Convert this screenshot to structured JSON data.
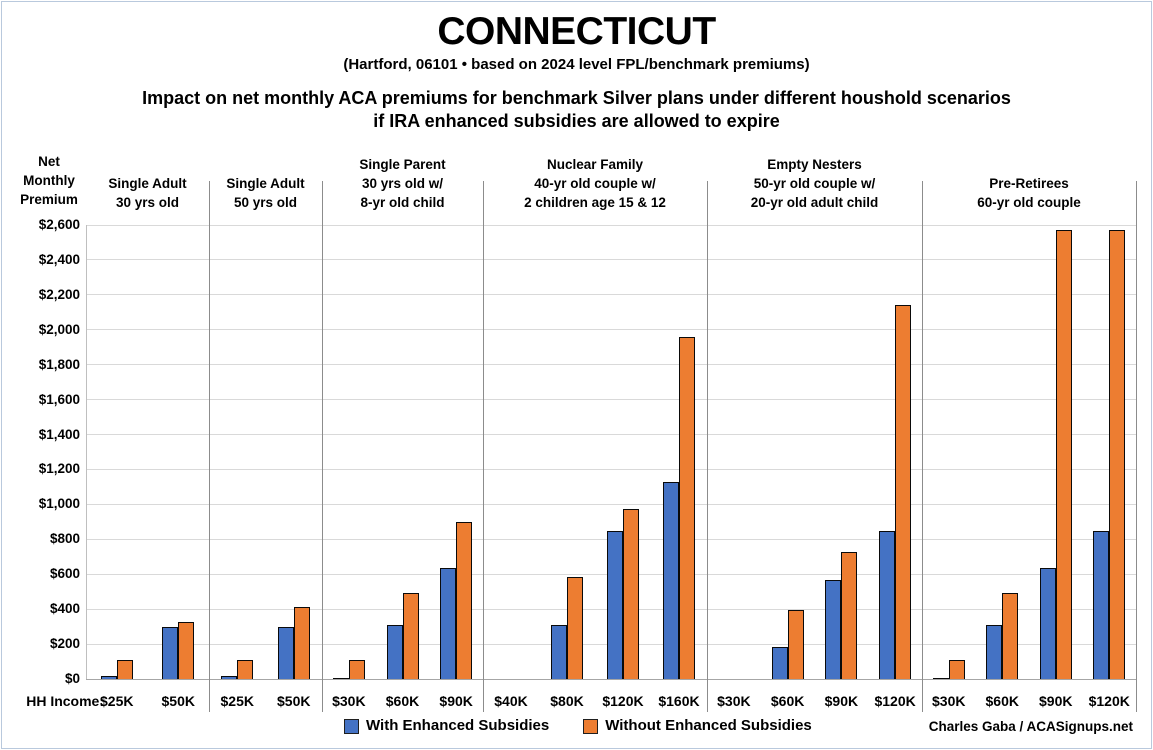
{
  "header": {
    "title": "CONNECTICUT",
    "subtitle": "(Hartford, 06101 • based on 2024 level FPL/benchmark premiums)",
    "heading_line1": "Impact on net monthly ACA premiums for benchmark Silver plans under different houshold scenarios",
    "heading_line2": "if IRA enhanced subsidies are allowed to expire"
  },
  "chart_data": {
    "type": "bar",
    "title": "Impact on net monthly ACA premiums for benchmark Silver plans under different houshold scenarios if IRA enhanced subsidies are allowed to expire",
    "ylabel": "Net Monthly Premium",
    "y_axis_title_lines": [
      "Net",
      "Monthly",
      "Premium"
    ],
    "ylim": [
      0,
      2600
    ],
    "ytick_step": 200,
    "ytick_prefix": "$",
    "grid": true,
    "legend_position": "bottom",
    "x_axis_label": "HH Income:",
    "legend": [
      {
        "name": "With Enhanced Subsidies",
        "color": "#4472C4"
      },
      {
        "name": "Without Enhanced Subsidies",
        "color": "#ED7D31"
      }
    ],
    "credit": "Charles Gaba / ACASignups.net",
    "groups": [
      {
        "title_lines": [
          "Single Adult",
          "30 yrs old"
        ],
        "categories": [
          "$25K",
          "$50K"
        ],
        "with_enhanced": [
          20,
          295
        ],
        "without_enhanced": [
          110,
          325
        ]
      },
      {
        "title_lines": [
          "Single Adult",
          "50 yrs old"
        ],
        "categories": [
          "$25K",
          "$50K"
        ],
        "with_enhanced": [
          20,
          295
        ],
        "without_enhanced": [
          110,
          410
        ]
      },
      {
        "title_lines": [
          "Single Parent",
          "30 yrs old w/",
          "8-yr old child"
        ],
        "categories": [
          "$30K",
          "$60K",
          "$90K"
        ],
        "with_enhanced": [
          8,
          310,
          635
        ],
        "without_enhanced": [
          110,
          490,
          900
        ]
      },
      {
        "title_lines": [
          "Nuclear Family",
          "40-yr old couple w/",
          "2 children age 15 & 12"
        ],
        "categories": [
          "$40K",
          "$80K",
          "$120K",
          "$160K"
        ],
        "with_enhanced": [
          0,
          310,
          845,
          1130
        ],
        "without_enhanced": [
          0,
          585,
          975,
          1960
        ]
      },
      {
        "title_lines": [
          "Empty Nesters",
          "50-yr old couple w/",
          "20-yr old adult child"
        ],
        "categories": [
          "$30K",
          "$60K",
          "$90K",
          "$120K"
        ],
        "with_enhanced": [
          0,
          185,
          565,
          845
        ],
        "without_enhanced": [
          0,
          395,
          730,
          2140
        ]
      },
      {
        "title_lines": [
          "Pre-Retirees",
          "60-yr old couple"
        ],
        "categories": [
          "$30K",
          "$60K",
          "$90K",
          "$120K"
        ],
        "with_enhanced": [
          8,
          310,
          635,
          845
        ],
        "without_enhanced": [
          110,
          490,
          2570,
          2570
        ]
      }
    ]
  }
}
